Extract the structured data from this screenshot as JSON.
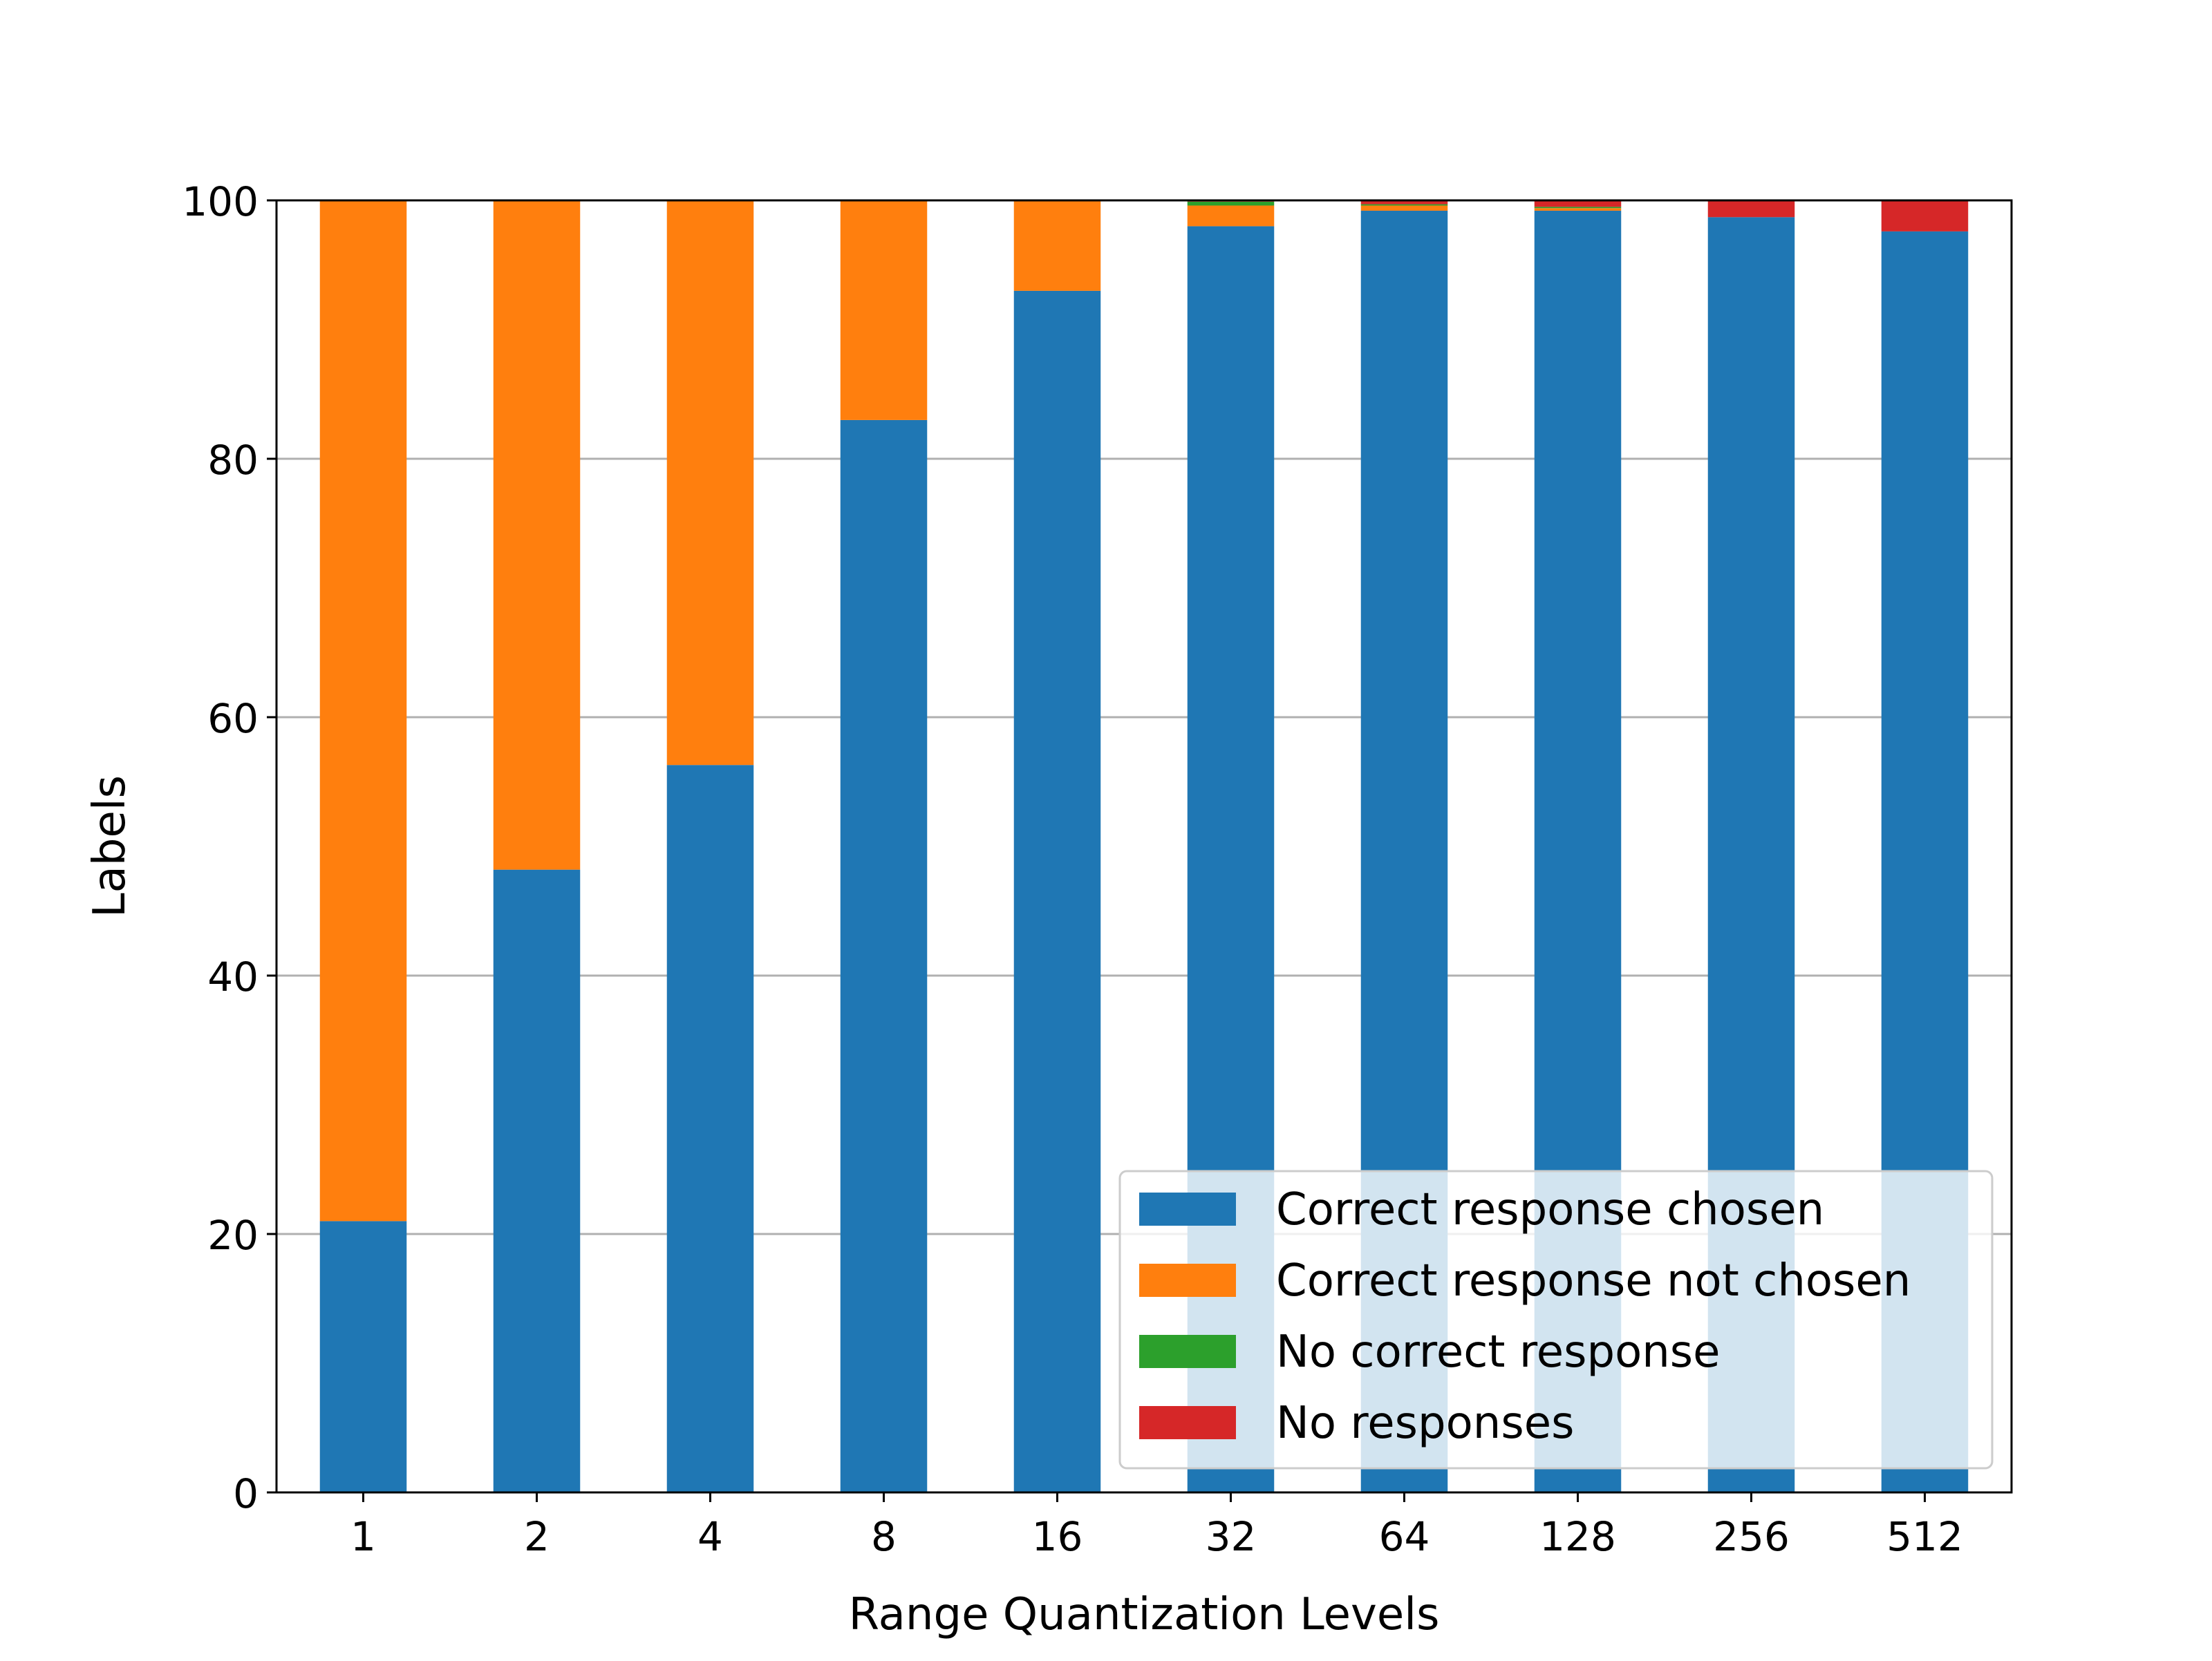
{
  "chart_data": {
    "type": "bar",
    "stacked": true,
    "title": "",
    "xlabel": "Range Quantization Levels",
    "ylabel": "Labels",
    "categories": [
      "1",
      "2",
      "4",
      "8",
      "16",
      "32",
      "64",
      "128",
      "256",
      "512"
    ],
    "ylim": [
      0,
      100
    ],
    "yticks": [
      "0",
      "20",
      "40",
      "60",
      "80",
      "100"
    ],
    "grid": "horizontal",
    "legend_position": "lower-right",
    "series": [
      {
        "name": "Correct response chosen",
        "color": "#1f77b4",
        "values": [
          21,
          48.2,
          56.3,
          83,
          93,
          98,
          99.2,
          99.2,
          98.7,
          97.6
        ]
      },
      {
        "name": "Correct response not chosen",
        "color": "#ff7f0e",
        "values": [
          79,
          51.8,
          43.7,
          17,
          7,
          1.6,
          0.4,
          0.2,
          0,
          0
        ]
      },
      {
        "name": "No correct response",
        "color": "#2ca02c",
        "values": [
          0,
          0,
          0,
          0,
          0,
          0.3,
          0.1,
          0.1,
          0,
          0
        ]
      },
      {
        "name": "No responses",
        "color": "#d62728",
        "values": [
          0,
          0,
          0,
          0,
          0,
          0.1,
          0.3,
          0.5,
          1.3,
          2.4
        ]
      }
    ]
  }
}
